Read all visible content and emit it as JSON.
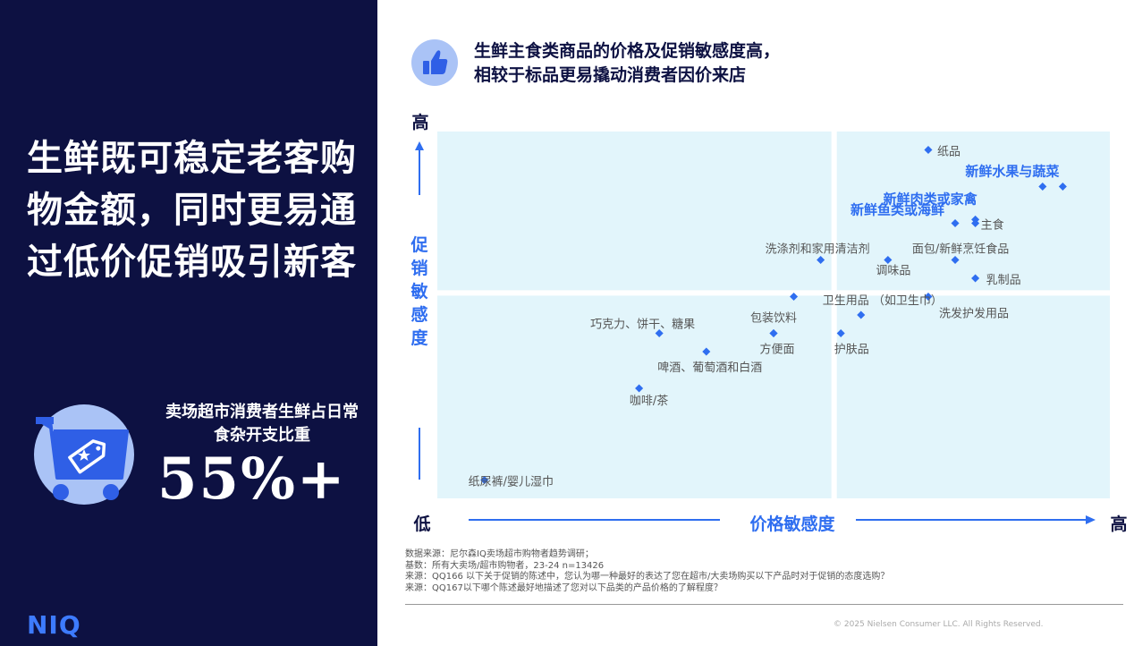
{
  "left_panel": {
    "headline": "生鲜既可稳定老客购物金额，同时更易通过低价促销吸引新客",
    "stat_label": "卖场超市消费者生鲜占日常食杂开支比重",
    "stat_value": "55%+",
    "logo": "NIQ",
    "colors": {
      "background": "#0d1142",
      "accent": "#3d7bfd"
    },
    "icon": "shopping-cart-tag-icon"
  },
  "title": {
    "line1": "生鲜主食类商品的价格及促销敏感度高，",
    "line2": "相较于标品更易撬动消费者因价来店",
    "icon": "thumbs-up-icon"
  },
  "chart_data": {
    "type": "scatter",
    "xlabel": "价格敏感度",
    "ylabel": "促销敏感度",
    "x_low": "低",
    "x_high": "高",
    "y_high": "高",
    "xlim": [
      0,
      100
    ],
    "ylim": [
      0,
      100
    ],
    "quadrant_split": {
      "x": 59,
      "y": 56
    },
    "grid": false,
    "colors": {
      "quadrant": "#e2f5fb",
      "point": "#2f6ef0",
      "highlight": "#2f6ef0",
      "label": "#555555",
      "axis": "#2f6ef0"
    },
    "points": [
      {
        "label": "纸品",
        "x": 73,
        "y": 95,
        "highlight": false
      },
      {
        "label": "新鲜水果与蔬菜",
        "x": 93,
        "y": 85,
        "highlight": true
      },
      {
        "label": "",
        "x": 90,
        "y": 85,
        "highlight": false
      },
      {
        "label": "新鲜肉类或家禽",
        "x": 80,
        "y": 76,
        "highlight": true
      },
      {
        "label": "新鲜鱼类或海鲜",
        "x": 77,
        "y": 75,
        "highlight": true
      },
      {
        "label": "主食",
        "x": 80,
        "y": 75,
        "highlight": false
      },
      {
        "label": "面包/新鲜烹饪食品",
        "x": 77,
        "y": 65,
        "highlight": false
      },
      {
        "label": "洗涤剂和家用清洁剂",
        "x": 57,
        "y": 65,
        "highlight": false
      },
      {
        "label": "调味品",
        "x": 67,
        "y": 65,
        "highlight": false
      },
      {
        "label": "乳制品",
        "x": 80,
        "y": 60,
        "highlight": false
      },
      {
        "label": "",
        "x": 53,
        "y": 55,
        "highlight": false
      },
      {
        "label": "洗发护发用品",
        "x": 73,
        "y": 55,
        "highlight": false
      },
      {
        "label": "卫生用品 （如卫生巾）",
        "x": 63,
        "y": 50,
        "highlight": false
      },
      {
        "label": "包装饮料",
        "x": 50,
        "y": 45,
        "highlight": false
      },
      {
        "label": "方便面",
        "x": 50,
        "y": 45,
        "highlight": false
      },
      {
        "label": "护肤品",
        "x": 60,
        "y": 45,
        "highlight": false
      },
      {
        "label": "巧克力、饼干、糖果",
        "x": 33,
        "y": 45,
        "highlight": false
      },
      {
        "label": "啤酒、葡萄酒和白酒",
        "x": 40,
        "y": 40,
        "highlight": false
      },
      {
        "label": "咖啡/茶",
        "x": 30,
        "y": 30,
        "highlight": false
      },
      {
        "label": "纸尿裤/婴儿湿巾",
        "x": 7,
        "y": 5,
        "highlight": false
      }
    ]
  },
  "sources": [
    "数据来源：尼尔森IQ卖场超市购物者趋势调研；",
    "基数：所有大卖场/超市购物者，23-24 n=13426",
    "来源：QQ166 以下关于促销的陈述中，您认为哪一种最好的表达了您在超市/大卖场购买以下产品时对于促销的态度选购？",
    "来源：QQ167以下哪个陈述最好地描述了您对以下品类的产品价格的了解程度？"
  ],
  "copyright": "© 2025 Nielsen Consumer LLC. All Rights Reserved."
}
